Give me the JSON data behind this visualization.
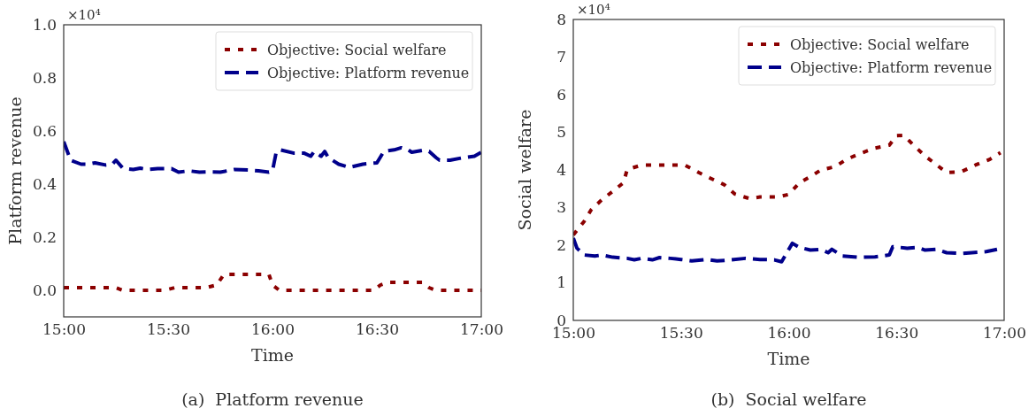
{
  "chart_data": [
    {
      "type": "line",
      "title": "(a)  Platform revenue",
      "xlabel": "Time",
      "ylabel": "Platform revenue",
      "annotations": [
        "×10⁴"
      ],
      "xlim": [
        15,
        17
      ],
      "xticks": [
        {
          "value": 15,
          "label": "15:00"
        },
        {
          "value": 15.5,
          "label": "15:30"
        },
        {
          "value": 16,
          "label": "16:00"
        },
        {
          "value": 16.5,
          "label": "16:30"
        },
        {
          "value": 17,
          "label": "17:00"
        }
      ],
      "ylim": [
        -0.1,
        1.0
      ],
      "yticks": [
        {
          "value": 0,
          "label": "0.0"
        },
        {
          "value": 0.2,
          "label": "0.2"
        },
        {
          "value": 0.4,
          "label": "0.4"
        },
        {
          "value": 0.6,
          "label": "0.6"
        },
        {
          "value": 0.8,
          "label": "0.8"
        },
        {
          "value": 1.0,
          "label": "1.0"
        }
      ],
      "grid": false,
      "legend": "top right",
      "series": [
        {
          "name": "Objective: Social welfare",
          "color": "#8b0000",
          "line_style": "dotted",
          "x": [
            15,
            15.25,
            15.283,
            15.483,
            15.533,
            15.683,
            15.733,
            15.767,
            15.983,
            16,
            16.033,
            16.483,
            16.517,
            16.55,
            16.717,
            16.75,
            16.783,
            17
          ],
          "values": [
            0.01,
            0.01,
            0,
            0,
            0.01,
            0.01,
            0.02,
            0.06,
            0.06,
            0.02,
            0,
            0,
            0.02,
            0.03,
            0.03,
            0.01,
            0,
            0
          ]
        },
        {
          "name": "Objective: Platform revenue",
          "color": "#00008b",
          "line_style": "dashed",
          "x": [
            15,
            15.033,
            15.083,
            15.117,
            15.15,
            15.2,
            15.233,
            15.25,
            15.283,
            15.333,
            15.367,
            15.4,
            15.45,
            15.517,
            15.55,
            15.6,
            15.65,
            15.683,
            15.75,
            15.817,
            15.883,
            15.933,
            15.983,
            16,
            16.017,
            16.033,
            16.1,
            16.15,
            16.183,
            16.2,
            16.233,
            16.25,
            16.267,
            16.317,
            16.367,
            16.433,
            16.483,
            16.5,
            16.533,
            16.583,
            16.617,
            16.65,
            16.667,
            16.717,
            16.75,
            16.783,
            16.8,
            16.85,
            16.917,
            16.967,
            17
          ],
          "values": [
            0.56,
            0.49,
            0.475,
            0.475,
            0.48,
            0.472,
            0.475,
            0.49,
            0.46,
            0.455,
            0.46,
            0.455,
            0.458,
            0.458,
            0.445,
            0.45,
            0.445,
            0.446,
            0.445,
            0.455,
            0.453,
            0.45,
            0.445,
            0.45,
            0.517,
            0.53,
            0.517,
            0.517,
            0.505,
            0.523,
            0.505,
            0.523,
            0.5,
            0.475,
            0.463,
            0.475,
            0.479,
            0.48,
            0.523,
            0.529,
            0.537,
            0.529,
            0.52,
            0.527,
            0.523,
            0.5,
            0.49,
            0.49,
            0.5,
            0.505,
            0.52
          ]
        }
      ]
    },
    {
      "type": "line",
      "title": "(b)  Social welfare",
      "xlabel": "Time",
      "ylabel": "Social welfare",
      "annotations": [
        "×10⁴"
      ],
      "xlim": [
        15,
        17
      ],
      "xticks": [
        {
          "value": 15,
          "label": "15:00"
        },
        {
          "value": 15.5,
          "label": "15:30"
        },
        {
          "value": 16,
          "label": "16:00"
        },
        {
          "value": 16.5,
          "label": "16:30"
        },
        {
          "value": 17,
          "label": "17:00"
        }
      ],
      "ylim": [
        0,
        8
      ],
      "yticks": [
        0,
        1,
        2,
        3,
        4,
        5,
        6,
        7,
        8
      ],
      "grid": false,
      "legend": "top right",
      "series": [
        {
          "name": "Objective: Social welfare",
          "color": "#8b0000",
          "line_style": "dotted",
          "x": [
            15,
            15.05,
            15.083,
            15.133,
            15.183,
            15.233,
            15.25,
            15.317,
            15.383,
            15.45,
            15.517,
            15.583,
            15.633,
            15.7,
            15.75,
            15.817,
            15.867,
            15.95,
            16,
            16.05,
            16.1,
            16.15,
            16.217,
            16.267,
            16.333,
            16.4,
            16.467,
            16.5,
            16.533,
            16.583,
            16.633,
            16.683,
            16.733,
            16.8,
            16.867,
            16.933,
            16.983
          ],
          "values": [
            2.27,
            2.63,
            2.94,
            3.21,
            3.43,
            3.66,
            4.01,
            4.13,
            4.13,
            4.13,
            4.13,
            3.93,
            3.79,
            3.61,
            3.36,
            3.24,
            3.28,
            3.28,
            3.35,
            3.66,
            3.82,
            4.0,
            4.09,
            4.28,
            4.44,
            4.58,
            4.66,
            4.91,
            4.92,
            4.64,
            4.37,
            4.15,
            3.93,
            3.95,
            4.13,
            4.28,
            4.46
          ]
        },
        {
          "name": "Objective: Platform revenue",
          "color": "#00008b",
          "line_style": "dashed",
          "x": [
            15,
            15.017,
            15.05,
            15.1,
            15.133,
            15.183,
            15.25,
            15.283,
            15.317,
            15.367,
            15.4,
            15.45,
            15.5,
            15.55,
            15.617,
            15.667,
            15.733,
            15.8,
            15.867,
            15.933,
            15.967,
            16.017,
            16.05,
            16.1,
            16.15,
            16.183,
            16.2,
            16.25,
            16.317,
            16.4,
            16.467,
            16.483,
            16.55,
            16.6,
            16.633,
            16.683,
            16.733,
            16.8,
            16.85,
            16.917,
            16.967
          ],
          "values": [
            2.19,
            1.92,
            1.74,
            1.71,
            1.74,
            1.68,
            1.65,
            1.61,
            1.65,
            1.61,
            1.67,
            1.65,
            1.62,
            1.58,
            1.62,
            1.58,
            1.61,
            1.65,
            1.62,
            1.61,
            1.56,
            2.05,
            1.94,
            1.87,
            1.89,
            1.8,
            1.89,
            1.71,
            1.68,
            1.69,
            1.74,
            1.96,
            1.92,
            1.94,
            1.87,
            1.89,
            1.8,
            1.78,
            1.8,
            1.83,
            1.89
          ]
        }
      ]
    }
  ]
}
